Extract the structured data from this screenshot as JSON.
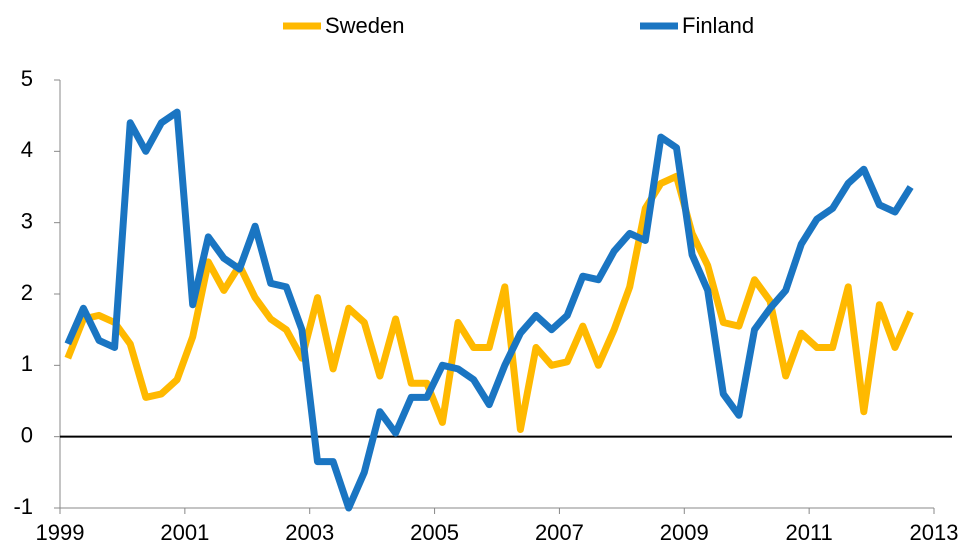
{
  "chart_data": {
    "type": "line",
    "x": [
      1999.125,
      1999.375,
      1999.625,
      1999.875,
      2000.125,
      2000.375,
      2000.625,
      2000.875,
      2001.125,
      2001.375,
      2001.625,
      2001.875,
      2002.125,
      2002.375,
      2002.625,
      2002.875,
      2003.125,
      2003.375,
      2003.625,
      2003.875,
      2004.125,
      2004.375,
      2004.625,
      2004.875,
      2005.125,
      2005.375,
      2005.625,
      2005.875,
      2006.125,
      2006.375,
      2006.625,
      2006.875,
      2007.125,
      2007.375,
      2007.625,
      2007.875,
      2008.125,
      2008.375,
      2008.625,
      2008.875,
      2009.125,
      2009.375,
      2009.625,
      2009.875,
      2010.125,
      2010.375,
      2010.625,
      2010.875,
      2011.125,
      2011.375,
      2011.625,
      2011.875,
      2012.125,
      2012.375,
      2012.625
    ],
    "series": [
      {
        "name": "Sweden",
        "color": "#ffb900",
        "values": [
          1.1,
          1.65,
          1.7,
          1.6,
          1.3,
          0.55,
          0.6,
          0.8,
          1.4,
          2.45,
          2.05,
          2.4,
          1.95,
          1.65,
          1.5,
          1.1,
          1.95,
          0.95,
          1.8,
          1.6,
          0.85,
          1.65,
          0.75,
          0.75,
          0.2,
          1.6,
          1.25,
          1.25,
          2.1,
          0.1,
          1.25,
          1.0,
          1.05,
          1.55,
          1.0,
          1.5,
          2.1,
          3.2,
          3.55,
          3.65,
          2.85,
          2.4,
          1.6,
          1.55,
          2.2,
          1.9,
          0.85,
          1.45,
          1.25,
          1.25,
          2.1,
          0.35,
          1.85,
          1.25,
          1.75
        ]
      },
      {
        "name": "Finland",
        "color": "#1a75c2",
        "values": [
          1.3,
          1.8,
          1.35,
          1.25,
          4.4,
          4.0,
          4.4,
          4.55,
          1.85,
          2.8,
          2.5,
          2.35,
          2.95,
          2.15,
          2.1,
          1.5,
          -0.35,
          -0.35,
          -1.0,
          -0.5,
          0.35,
          0.05,
          0.55,
          0.55,
          1.0,
          0.95,
          0.8,
          0.45,
          1.0,
          1.45,
          1.7,
          1.5,
          1.7,
          2.25,
          2.2,
          2.6,
          2.85,
          2.75,
          4.2,
          4.05,
          2.55,
          2.05,
          0.6,
          0.3,
          1.5,
          1.8,
          2.05,
          2.7,
          3.05,
          3.2,
          3.55,
          3.75,
          3.25,
          3.15,
          3.5
        ]
      }
    ],
    "xlim": [
      1999,
      2013
    ],
    "xticks": [
      1999,
      2001,
      2003,
      2005,
      2007,
      2009,
      2011,
      2013
    ],
    "ylim": [
      -1,
      5
    ],
    "yticks": [
      -1,
      0,
      1,
      2,
      3,
      4,
      5
    ],
    "grid": false,
    "legend": "top"
  }
}
